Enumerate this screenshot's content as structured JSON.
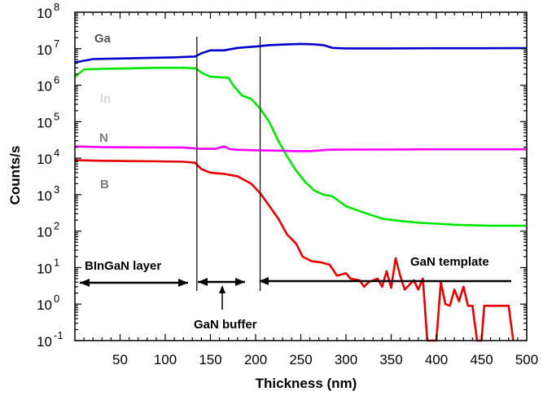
{
  "chart_data": {
    "type": "line",
    "xlabel": "Thickness (nm)",
    "ylabel": "Counts/s",
    "xlim": [
      0,
      500
    ],
    "ylim": [
      0.1,
      100000000
    ],
    "y_scale": "log",
    "grid": false,
    "x_ticks": [
      "50",
      "100",
      "150",
      "200",
      "250",
      "300",
      "350",
      "400",
      "450",
      "500"
    ],
    "y_ticks": [
      {
        "base": "10",
        "exp": "-1"
      },
      {
        "base": "10",
        "exp": "0"
      },
      {
        "base": "10",
        "exp": "1"
      },
      {
        "base": "10",
        "exp": "2"
      },
      {
        "base": "10",
        "exp": "3"
      },
      {
        "base": "10",
        "exp": "4"
      },
      {
        "base": "10",
        "exp": "5"
      },
      {
        "base": "10",
        "exp": "6"
      },
      {
        "base": "10",
        "exp": "7"
      },
      {
        "base": "10",
        "exp": "8"
      }
    ],
    "series": [
      {
        "name": "Ga",
        "color": "#0000cc",
        "label_color": "#555555",
        "x": [
          0,
          20,
          50,
          80,
          110,
          125,
          133,
          140,
          150,
          165,
          180,
          200,
          215,
          230,
          250,
          265,
          275,
          285,
          300,
          350,
          400,
          450,
          500
        ],
        "y": [
          4200000,
          5200000,
          5400000,
          5600000,
          5800000,
          6000000,
          6100000,
          7500000,
          9000000,
          9000000,
          10500000,
          11500000,
          12500000,
          13000000,
          13500000,
          13200000,
          12500000,
          10500000,
          10200000,
          10200000,
          10300000,
          10300000,
          10400000
        ]
      },
      {
        "name": "In",
        "color": "#00e600",
        "label_color": "#d6d6d6",
        "x": [
          0,
          10,
          30,
          60,
          90,
          120,
          134,
          140,
          150,
          160,
          170,
          175,
          185,
          195,
          205,
          215,
          225,
          235,
          245,
          255,
          265,
          275,
          285,
          300,
          320,
          340,
          360,
          380,
          400,
          420,
          440,
          460,
          480,
          500
        ],
        "y": [
          1700000,
          2700000,
          2800000,
          2900000,
          3000000,
          3000000,
          2900000,
          2200000,
          1700000,
          1650000,
          1600000,
          1000000,
          520000,
          420000,
          230000,
          100000,
          30000,
          11000,
          4500,
          2200,
          1300,
          1000,
          900,
          480,
          320,
          220,
          190,
          170,
          160,
          150,
          145,
          140,
          140,
          140
        ]
      },
      {
        "name": "N",
        "color": "#ff00ff",
        "label_color": "#7a7a7a",
        "x": [
          0,
          30,
          60,
          90,
          120,
          140,
          155,
          165,
          172,
          180,
          200,
          230,
          245,
          260,
          280,
          300,
          350,
          400,
          450,
          500
        ],
        "y": [
          21000,
          20000,
          19800,
          19700,
          19500,
          18000,
          18000,
          21000,
          17500,
          17000,
          16500,
          16000,
          15500,
          15500,
          17000,
          17200,
          17300,
          17500,
          17500,
          17500
        ],
        "points": [
          [
            0,
            21000
          ],
          [
            30,
            20000
          ],
          [
            60,
            19800
          ],
          [
            90,
            19700
          ],
          [
            120,
            19500
          ],
          [
            140,
            18000
          ],
          [
            155,
            18000
          ],
          [
            165,
            21000
          ],
          [
            172,
            17500
          ],
          [
            180,
            17000
          ],
          [
            200,
            16500
          ],
          [
            230,
            16000
          ],
          [
            245,
            15500
          ],
          [
            260,
            15500
          ],
          [
            280,
            17000
          ],
          [
            300,
            17200
          ],
          [
            350,
            17300
          ],
          [
            400,
            17500
          ],
          [
            450,
            17500
          ],
          [
            500,
            17500
          ]
        ]
      },
      {
        "name": "B",
        "color": "#e60000",
        "label_color": "#7a7a7a",
        "points": [
          [
            0,
            8800
          ],
          [
            30,
            8500
          ],
          [
            60,
            8300
          ],
          [
            90,
            8200
          ],
          [
            120,
            8000
          ],
          [
            133,
            7500
          ],
          [
            140,
            5000
          ],
          [
            150,
            4000
          ],
          [
            165,
            3700
          ],
          [
            180,
            3200
          ],
          [
            195,
            2000
          ],
          [
            205,
            1100
          ],
          [
            215,
            500
          ],
          [
            225,
            220
          ],
          [
            235,
            80
          ],
          [
            245,
            45
          ],
          [
            252,
            20
          ],
          [
            262,
            15
          ],
          [
            272,
            14
          ],
          [
            282,
            12
          ],
          [
            290,
            6
          ],
          [
            300,
            7
          ],
          [
            305,
            5
          ],
          [
            315,
            4.5
          ],
          [
            320,
            3
          ],
          [
            325,
            4
          ],
          [
            335,
            5
          ],
          [
            340,
            3
          ],
          [
            345,
            8
          ],
          [
            350,
            2.8
          ],
          [
            355,
            18
          ],
          [
            360,
            6
          ],
          [
            365,
            2.5
          ],
          [
            375,
            4.5
          ],
          [
            380,
            2.5
          ],
          [
            385,
            5
          ],
          [
            390,
            0.1
          ],
          [
            400,
            0.1
          ],
          [
            405,
            4
          ],
          [
            410,
            1
          ],
          [
            415,
            0.9
          ],
          [
            420,
            2.5
          ],
          [
            425,
            1.2
          ],
          [
            430,
            3
          ],
          [
            435,
            0.9
          ],
          [
            440,
            0.9
          ],
          [
            445,
            0.1
          ],
          [
            450,
            0.1
          ],
          [
            453,
            0.9
          ],
          [
            460,
            0.9
          ],
          [
            470,
            0.9
          ],
          [
            480,
            0.9
          ],
          [
            485,
            0.1
          ]
        ]
      }
    ],
    "vertical_lines": [
      135,
      205
    ],
    "annotations": {
      "binGaN_layer": "BInGaN layer",
      "gan_buffer": "GaN buffer",
      "gan_template": "GaN template"
    }
  }
}
